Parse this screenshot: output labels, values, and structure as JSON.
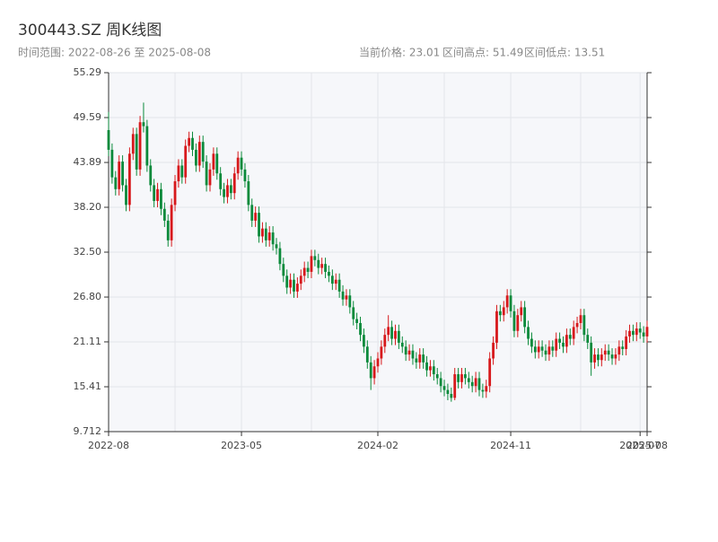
{
  "chart_data": {
    "type": "candlestick",
    "title": "300443.SZ 周K线图",
    "subtitle": "时间范围: 2022-08-26 至 2025-08-08",
    "info": [
      "当前价格: 23.01",
      "区间高点: 51.49",
      "区间低点: 13.51"
    ],
    "up_color": "#d7191c",
    "down_color": "#0b8a3b",
    "grid": true,
    "x": [
      "2022-08-26",
      "2022-09-02",
      "2022-09-09",
      "2022-09-16",
      "2022-09-23",
      "2022-09-30",
      "2022-10-07",
      "2022-10-14",
      "2022-10-21",
      "2022-10-28",
      "2022-11-04",
      "2022-11-11",
      "2022-11-18",
      "2022-11-25",
      "2022-12-02",
      "2022-12-09",
      "2022-12-16",
      "2022-12-23",
      "2022-12-30",
      "2023-01-06",
      "2023-01-13",
      "2023-01-20",
      "2023-01-27",
      "2023-02-03",
      "2023-02-10",
      "2023-02-17",
      "2023-02-24",
      "2023-03-03",
      "2023-03-10",
      "2023-03-17",
      "2023-03-24",
      "2023-03-31",
      "2023-04-07",
      "2023-04-14",
      "2023-04-21",
      "2023-04-28",
      "2023-05-05",
      "2023-05-12",
      "2023-05-19",
      "2023-05-26",
      "2023-06-02",
      "2023-06-09",
      "2023-06-16",
      "2023-06-23",
      "2023-06-30",
      "2023-07-07",
      "2023-07-14",
      "2023-07-21",
      "2023-07-28",
      "2023-08-04",
      "2023-08-11",
      "2023-08-18",
      "2023-08-25",
      "2023-09-01",
      "2023-09-08",
      "2023-09-15",
      "2023-09-22",
      "2023-09-29",
      "2023-10-06",
      "2023-10-13",
      "2023-10-20",
      "2023-10-27",
      "2023-11-03",
      "2023-11-10",
      "2023-11-17",
      "2023-11-24",
      "2023-12-01",
      "2023-12-08",
      "2023-12-15",
      "2023-12-22",
      "2023-12-29",
      "2024-01-05",
      "2024-01-12",
      "2024-01-19",
      "2024-01-26",
      "2024-02-02",
      "2024-02-09",
      "2024-02-16",
      "2024-02-23",
      "2024-03-01",
      "2024-03-08",
      "2024-03-15",
      "2024-03-22",
      "2024-03-29",
      "2024-04-05",
      "2024-04-12",
      "2024-04-19",
      "2024-04-26",
      "2024-05-03",
      "2024-05-10",
      "2024-05-17",
      "2024-05-24",
      "2024-05-31",
      "2024-06-07",
      "2024-06-14",
      "2024-06-21",
      "2024-06-28",
      "2024-07-05",
      "2024-07-12",
      "2024-07-19",
      "2024-07-26",
      "2024-08-02",
      "2024-08-09",
      "2024-08-16",
      "2024-08-23",
      "2024-08-30",
      "2024-09-06",
      "2024-09-13",
      "2024-09-20",
      "2024-09-27",
      "2024-10-04",
      "2024-10-11",
      "2024-10-18",
      "2024-10-25",
      "2024-11-01",
      "2024-11-08",
      "2024-11-15",
      "2024-11-22",
      "2024-11-29",
      "2024-12-06",
      "2024-12-13",
      "2024-12-20",
      "2024-12-27",
      "2025-01-03",
      "2025-01-10",
      "2025-01-17",
      "2025-01-24",
      "2025-01-31",
      "2025-02-07",
      "2025-02-14",
      "2025-02-21",
      "2025-02-28",
      "2025-03-07",
      "2025-03-14",
      "2025-03-21",
      "2025-03-28",
      "2025-04-04",
      "2025-04-11",
      "2025-04-18",
      "2025-04-25",
      "2025-05-02",
      "2025-05-09",
      "2025-05-16",
      "2025-05-23",
      "2025-05-30",
      "2025-06-06",
      "2025-06-13",
      "2025-06-20",
      "2025-06-27",
      "2025-07-04",
      "2025-07-11",
      "2025-07-18",
      "2025-07-25",
      "2025-08-01",
      "2025-08-08"
    ],
    "open": [
      48.0,
      45.5,
      42.0,
      40.5,
      44.0,
      41.0,
      38.5,
      45.0,
      47.5,
      43.0,
      49.0,
      48.5,
      43.5,
      41.0,
      39.0,
      40.5,
      38.0,
      36.5,
      34.0,
      38.5,
      41.5,
      43.5,
      42.0,
      46.0,
      47.0,
      45.5,
      43.5,
      46.5,
      44.0,
      41.0,
      43.0,
      45.0,
      42.5,
      40.5,
      39.5,
      41.0,
      40.0,
      42.5,
      44.5,
      43.0,
      41.5,
      38.5,
      36.5,
      37.5,
      34.5,
      35.5,
      34.0,
      35.0,
      33.5,
      33.0,
      31.0,
      29.5,
      28.0,
      29.0,
      27.5,
      28.5,
      29.5,
      30.5,
      30.0,
      32.0,
      31.5,
      30.5,
      31.0,
      30.0,
      29.5,
      28.5,
      29.0,
      27.5,
      26.5,
      27.0,
      25.5,
      24.0,
      23.5,
      22.0,
      20.5,
      18.5,
      16.5,
      18.0,
      19.0,
      20.5,
      22.0,
      23.0,
      21.5,
      22.5,
      21.0,
      20.5,
      19.5,
      20.0,
      19.0,
      18.5,
      19.5,
      18.5,
      17.5,
      18.0,
      17.0,
      16.5,
      15.5,
      15.0,
      14.5,
      14.0,
      17.0,
      16.0,
      17.0,
      16.5,
      16.0,
      15.5,
      16.5,
      15.0,
      14.8,
      15.5,
      19.0,
      21.0,
      25.0,
      24.5,
      25.5,
      27.0,
      25.0,
      22.5,
      24.5,
      25.5,
      23.0,
      21.5,
      20.5,
      19.8,
      20.5,
      20.0,
      19.5,
      20.5,
      20.0,
      21.5,
      21.0,
      20.5,
      22.0,
      21.5,
      23.0,
      23.5,
      24.5,
      22.0,
      21.0,
      18.5,
      19.5,
      18.8,
      19.5,
      20.0,
      19.5,
      19.0,
      19.5,
      20.5,
      20.2,
      21.8,
      22.5,
      22.0,
      22.8,
      22.3,
      21.8
    ],
    "high": [
      50.3,
      46.3,
      42.8,
      44.8,
      44.8,
      41.8,
      45.8,
      48.3,
      48.3,
      49.8,
      51.49,
      49.3,
      44.3,
      41.8,
      41.3,
      41.3,
      38.8,
      37.3,
      39.3,
      42.3,
      44.3,
      44.3,
      46.8,
      47.8,
      47.8,
      46.3,
      47.3,
      47.3,
      44.8,
      43.8,
      45.8,
      45.8,
      43.3,
      41.3,
      41.8,
      41.8,
      43.3,
      45.3,
      45.3,
      43.8,
      42.3,
      39.3,
      38.3,
      38.3,
      36.3,
      36.3,
      35.8,
      35.8,
      34.3,
      33.8,
      31.8,
      30.3,
      29.8,
      29.8,
      29.3,
      30.3,
      31.3,
      31.3,
      32.8,
      32.8,
      32.3,
      31.8,
      31.8,
      30.8,
      30.3,
      29.8,
      29.8,
      28.3,
      27.8,
      27.8,
      26.3,
      24.8,
      24.3,
      22.8,
      21.3,
      19.3,
      18.8,
      19.8,
      21.3,
      22.8,
      24.5,
      23.8,
      23.3,
      23.3,
      21.8,
      21.3,
      20.8,
      20.8,
      19.8,
      20.3,
      20.3,
      19.3,
      18.8,
      18.8,
      17.8,
      17.3,
      16.3,
      15.8,
      15.3,
      17.8,
      17.8,
      17.8,
      17.8,
      17.3,
      16.8,
      17.3,
      17.3,
      15.8,
      16.3,
      19.8,
      21.8,
      25.8,
      25.8,
      26.3,
      27.8,
      27.8,
      25.8,
      25.3,
      26.3,
      26.3,
      23.8,
      22.3,
      21.3,
      21.3,
      21.3,
      20.8,
      21.3,
      21.3,
      22.3,
      22.3,
      21.8,
      22.8,
      22.8,
      23.8,
      24.3,
      25.3,
      25.3,
      22.8,
      21.8,
      20.3,
      20.3,
      20.3,
      20.8,
      20.8,
      20.3,
      20.3,
      21.3,
      21.3,
      22.6,
      23.3,
      23.3,
      23.6,
      23.6,
      23.1,
      23.8
    ],
    "low": [
      44.7,
      41.2,
      39.7,
      39.7,
      40.2,
      37.7,
      37.7,
      44.2,
      42.2,
      42.2,
      47.7,
      42.7,
      40.2,
      38.2,
      38.2,
      37.2,
      35.7,
      33.2,
      33.2,
      37.7,
      40.7,
      41.2,
      41.2,
      45.2,
      44.7,
      42.7,
      42.7,
      43.2,
      40.2,
      40.2,
      42.2,
      41.7,
      39.7,
      38.7,
      38.7,
      39.2,
      39.2,
      41.7,
      42.2,
      40.7,
      37.7,
      35.7,
      35.7,
      33.7,
      33.7,
      33.2,
      33.2,
      32.7,
      32.2,
      30.2,
      28.7,
      27.2,
      27.2,
      26.7,
      26.7,
      27.7,
      28.7,
      29.2,
      29.2,
      30.7,
      29.7,
      29.7,
      29.2,
      28.7,
      27.7,
      27.7,
      26.7,
      25.7,
      25.7,
      24.7,
      23.2,
      22.7,
      21.2,
      19.7,
      17.7,
      15.0,
      15.7,
      17.2,
      18.2,
      19.7,
      21.2,
      20.7,
      20.7,
      20.2,
      19.7,
      18.7,
      18.7,
      18.2,
      17.7,
      17.7,
      17.7,
      16.7,
      16.7,
      16.2,
      15.7,
      14.7,
      14.2,
      13.7,
      13.51,
      13.7,
      15.2,
      15.2,
      15.7,
      15.2,
      14.7,
      14.7,
      14.2,
      14.0,
      14.0,
      14.7,
      18.2,
      20.2,
      23.7,
      23.7,
      24.7,
      24.2,
      21.7,
      21.7,
      23.7,
      22.2,
      20.7,
      19.7,
      19.0,
      19.0,
      19.2,
      18.7,
      18.7,
      19.2,
      19.2,
      20.2,
      19.7,
      19.7,
      20.7,
      20.7,
      22.2,
      22.7,
      21.2,
      20.2,
      16.8,
      17.7,
      18.0,
      18.0,
      18.7,
      18.7,
      18.2,
      18.2,
      18.7,
      19.4,
      19.4,
      21.0,
      21.2,
      21.2,
      21.5,
      21.0,
      21.0
    ],
    "close": [
      45.5,
      42.0,
      40.5,
      44.0,
      41.0,
      38.5,
      45.0,
      47.5,
      43.0,
      49.0,
      48.5,
      43.5,
      41.0,
      39.0,
      40.5,
      38.0,
      36.5,
      34.0,
      38.5,
      41.5,
      43.5,
      42.0,
      46.0,
      47.0,
      45.5,
      43.5,
      46.5,
      44.0,
      41.0,
      43.0,
      45.0,
      42.5,
      40.5,
      39.5,
      41.0,
      40.0,
      42.5,
      44.5,
      43.0,
      41.5,
      38.5,
      36.5,
      37.5,
      34.5,
      35.5,
      34.0,
      35.0,
      33.5,
      33.0,
      31.0,
      29.5,
      28.0,
      29.0,
      27.5,
      28.5,
      29.5,
      30.5,
      30.0,
      32.0,
      31.5,
      30.5,
      31.0,
      30.0,
      29.5,
      28.5,
      29.0,
      27.5,
      26.5,
      27.0,
      25.5,
      24.0,
      23.5,
      22.0,
      20.5,
      18.5,
      16.5,
      18.0,
      19.0,
      20.5,
      22.0,
      23.0,
      21.5,
      22.5,
      21.0,
      20.5,
      19.5,
      20.0,
      19.0,
      18.5,
      19.5,
      18.5,
      17.5,
      18.0,
      17.0,
      16.5,
      15.5,
      15.0,
      14.5,
      14.0,
      17.0,
      16.0,
      17.0,
      16.5,
      16.0,
      15.5,
      16.5,
      15.0,
      14.8,
      15.5,
      19.0,
      21.0,
      25.0,
      24.5,
      25.5,
      27.0,
      25.0,
      22.5,
      24.5,
      25.5,
      23.0,
      21.5,
      20.5,
      19.8,
      20.5,
      20.0,
      19.5,
      20.5,
      20.0,
      21.5,
      21.0,
      20.5,
      22.0,
      21.5,
      23.0,
      23.5,
      24.5,
      22.0,
      21.0,
      18.5,
      19.5,
      18.8,
      19.5,
      20.0,
      19.5,
      19.0,
      19.5,
      20.5,
      20.2,
      21.8,
      22.5,
      22.0,
      22.8,
      22.3,
      21.8,
      23.01
    ],
    "ylim": [
      9.712,
      55.29
    ],
    "yticks": [
      9.712,
      15.41,
      21.11,
      {
        "value": 26.8,
        "label": "26.80"
      },
      {
        "value": 32.5,
        "label": "32.50"
      },
      {
        "value": 38.2,
        "label": "38.20"
      },
      43.89,
      49.59,
      55.29
    ],
    "xticks": [
      {
        "value": 0,
        "label": "2022-08"
      },
      {
        "value": 38,
        "label": "2023-05"
      },
      {
        "value": 77,
        "label": "2024-02"
      },
      {
        "value": 115,
        "label": "2024-11"
      },
      {
        "value": 152,
        "label": "2025-07"
      },
      {
        "value": 154,
        "label": "2025-08"
      }
    ],
    "xminor": [
      19,
      58,
      96,
      135
    ]
  }
}
